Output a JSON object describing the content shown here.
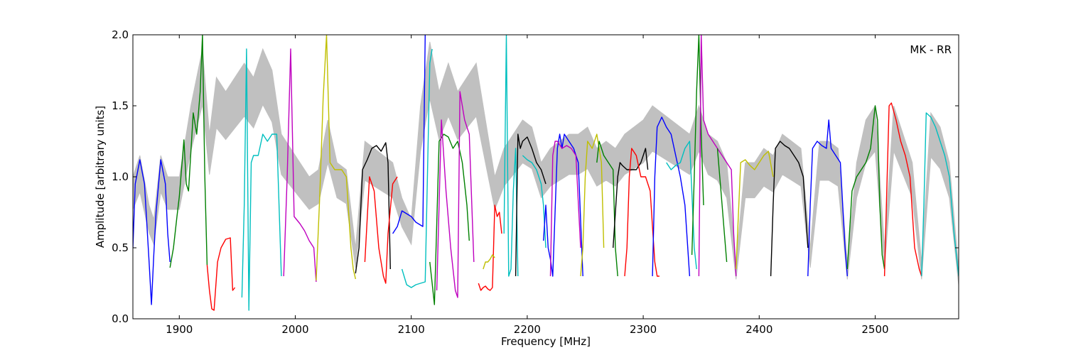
{
  "chart_data": {
    "type": "line",
    "xlabel": "Frequency [MHz]",
    "ylabel": "Amplitude [arbitrary units]",
    "xlim": [
      1860,
      2572
    ],
    "ylim": [
      0.0,
      2.0
    ],
    "x_ticks": [
      1900,
      2000,
      2100,
      2200,
      2300,
      2400,
      2500
    ],
    "x_tick_labels": [
      "1900",
      "2000",
      "2100",
      "2200",
      "2300",
      "2400",
      "2500"
    ],
    "y_ticks": [
      0.0,
      0.5,
      1.0,
      1.5,
      2.0
    ],
    "y_tick_labels": [
      "0.0",
      "0.5",
      "1.0",
      "1.5",
      "2.0"
    ],
    "grid": false,
    "annotation": "MK - RR",
    "reference_color": "#c0c0c0",
    "segments": [
      {
        "color": "#0000ff",
        "x": [
          1860,
          1862,
          1866,
          1870,
          1874,
          1876,
          1878,
          1880,
          1884,
          1888,
          1890,
          1892
        ],
        "y": [
          0.5,
          0.95,
          1.12,
          0.95,
          0.4,
          0.1,
          0.45,
          0.75,
          1.12,
          0.95,
          0.6,
          0.4
        ]
      },
      {
        "color": "#008000",
        "x": [
          1892,
          1895,
          1898,
          1900,
          1904,
          1906,
          1908,
          1912,
          1915,
          1918,
          1920,
          1922,
          1924
        ],
        "y": [
          0.36,
          0.5,
          0.72,
          0.86,
          1.26,
          0.95,
          0.9,
          1.45,
          1.3,
          1.6,
          2.0,
          1.0,
          0.38
        ]
      },
      {
        "color": "#ff0000",
        "x": [
          1924,
          1926,
          1928,
          1930,
          1933,
          1936,
          1940,
          1944,
          1946,
          1948
        ],
        "y": [
          0.38,
          0.2,
          0.07,
          0.06,
          0.4,
          0.5,
          0.56,
          0.57,
          0.2,
          0.22
        ]
      },
      {
        "color": "#00bfbf",
        "x": [
          1954,
          1956,
          1958,
          1960,
          1962,
          1964,
          1968,
          1972,
          1976,
          1980,
          1984,
          1988
        ],
        "y": [
          0.15,
          0.8,
          1.9,
          0.06,
          1.1,
          1.15,
          1.15,
          1.3,
          1.25,
          1.3,
          1.3,
          0.3
        ]
      },
      {
        "color": "#bf00bf",
        "x": [
          1990,
          1993,
          1996,
          1999,
          2004,
          2008,
          2012,
          2016,
          2018
        ],
        "y": [
          0.3,
          1.0,
          1.9,
          0.72,
          0.67,
          0.62,
          0.55,
          0.5,
          0.26
        ]
      },
      {
        "color": "#bfbf00",
        "x": [
          2018,
          2021,
          2024,
          2027,
          2030,
          2034,
          2040,
          2044,
          2048,
          2050,
          2052
        ],
        "y": [
          0.27,
          0.85,
          1.55,
          2.0,
          1.1,
          1.05,
          1.05,
          1.0,
          0.5,
          0.35,
          0.28
        ]
      },
      {
        "color": "#000000",
        "x": [
          2052,
          2055,
          2058,
          2062,
          2066,
          2070,
          2074,
          2078,
          2080,
          2082
        ],
        "y": [
          0.32,
          0.5,
          1.05,
          1.12,
          1.2,
          1.22,
          1.18,
          1.24,
          1.1,
          0.35
        ]
      },
      {
        "color": "#ff0000",
        "x": [
          2060,
          2064,
          2068,
          2072,
          2076,
          2078,
          2080,
          2084,
          2088
        ],
        "y": [
          0.4,
          1.0,
          0.9,
          0.5,
          0.3,
          0.25,
          0.6,
          0.95,
          1.0
        ]
      },
      {
        "color": "#0000ff",
        "x": [
          2084,
          2088,
          2092,
          2096,
          2100,
          2104,
          2108,
          2110,
          2112
        ],
        "y": [
          0.6,
          0.65,
          0.76,
          0.74,
          0.72,
          0.68,
          0.66,
          0.65,
          2.0
        ]
      },
      {
        "color": "#00bfbf",
        "x": [
          2092,
          2096,
          2100,
          2104,
          2108,
          2112,
          2116,
          2118
        ],
        "y": [
          0.35,
          0.24,
          0.22,
          0.24,
          0.25,
          0.26,
          1.8,
          1.9
        ]
      },
      {
        "color": "#008000",
        "x": [
          2116,
          2118,
          2120,
          2124,
          2128,
          2132,
          2136,
          2140,
          2144,
          2148,
          2150
        ],
        "y": [
          0.4,
          0.25,
          0.1,
          1.25,
          1.3,
          1.28,
          1.2,
          1.25,
          1.1,
          0.8,
          0.55
        ]
      },
      {
        "color": "#bf00bf",
        "x": [
          2122,
          2126,
          2130,
          2134,
          2138,
          2140,
          2142,
          2146,
          2150,
          2154
        ],
        "y": [
          0.2,
          1.4,
          0.9,
          0.5,
          0.2,
          0.15,
          1.6,
          1.4,
          1.3,
          0.4
        ]
      },
      {
        "color": "#ff0000",
        "x": [
          2158,
          2160,
          2162,
          2164,
          2166,
          2168,
          2170,
          2172,
          2174,
          2176,
          2178
        ],
        "y": [
          0.25,
          0.2,
          0.22,
          0.23,
          0.21,
          0.2,
          0.22,
          0.8,
          0.72,
          0.75,
          0.6
        ]
      },
      {
        "color": "#bfbf00",
        "x": [
          2162,
          2164,
          2166,
          2168,
          2170,
          2172
        ],
        "y": [
          0.35,
          0.4,
          0.4,
          0.42,
          0.45,
          0.43
        ]
      },
      {
        "color": "#00bfbf",
        "x": [
          2180,
          2182,
          2184,
          2186,
          2188,
          2190,
          2192
        ],
        "y": [
          0.6,
          2.0,
          0.3,
          0.35,
          0.9,
          1.2,
          0.3
        ]
      },
      {
        "color": "#000000",
        "x": [
          2190,
          2192,
          2194,
          2196,
          2200,
          2204,
          2208,
          2212,
          2216
        ],
        "y": [
          0.3,
          1.3,
          1.2,
          1.25,
          1.28,
          1.2,
          1.1,
          1.05,
          0.95
        ]
      },
      {
        "color": "#00bfbf",
        "x": [
          2196,
          2200,
          2204,
          2208,
          2212,
          2214,
          2216
        ],
        "y": [
          1.15,
          1.12,
          1.1,
          1.05,
          0.95,
          0.8,
          0.5
        ]
      },
      {
        "color": "#0000ff",
        "x": [
          2214,
          2216,
          2218,
          2220,
          2222,
          2226,
          2228,
          2230,
          2232,
          2236,
          2240,
          2244,
          2248
        ],
        "y": [
          0.55,
          0.8,
          0.5,
          0.42,
          0.3,
          1.2,
          1.3,
          1.2,
          1.3,
          1.25,
          1.2,
          1.1,
          0.3
        ]
      },
      {
        "color": "#bf00bf",
        "x": [
          2220,
          2222,
          2224,
          2226,
          2230,
          2234,
          2238,
          2242,
          2246
        ],
        "y": [
          0.3,
          1.15,
          1.25,
          1.25,
          1.2,
          1.22,
          1.2,
          1.15,
          0.5
        ]
      },
      {
        "color": "#bfbf00",
        "x": [
          2246,
          2248,
          2250,
          2252,
          2256,
          2260,
          2264,
          2266
        ],
        "y": [
          0.3,
          0.5,
          1.0,
          1.25,
          1.2,
          1.3,
          1.1,
          0.5
        ]
      },
      {
        "color": "#008000",
        "x": [
          2260,
          2262,
          2266,
          2270,
          2274,
          2276,
          2278
        ],
        "y": [
          1.1,
          1.25,
          1.15,
          1.1,
          1.05,
          0.5,
          0.3
        ]
      },
      {
        "color": "#000000",
        "x": [
          2274,
          2278,
          2280,
          2282,
          2286,
          2290,
          2294,
          2298,
          2302,
          2304
        ],
        "y": [
          0.5,
          1.0,
          1.1,
          1.08,
          1.05,
          1.05,
          1.05,
          1.1,
          1.2,
          1.05
        ]
      },
      {
        "color": "#ff0000",
        "x": [
          2284,
          2286,
          2288,
          2290,
          2294,
          2298,
          2302,
          2306,
          2308,
          2310,
          2312,
          2314
        ],
        "y": [
          0.3,
          0.5,
          1.0,
          1.2,
          1.15,
          1.0,
          1.0,
          0.9,
          0.65,
          0.4,
          0.3,
          0.3
        ]
      },
      {
        "color": "#0000ff",
        "x": [
          2308,
          2310,
          2312,
          2316,
          2320,
          2324,
          2328,
          2332,
          2336,
          2340
        ],
        "y": [
          0.3,
          1.0,
          1.35,
          1.42,
          1.35,
          1.3,
          1.15,
          1.0,
          0.8,
          0.3
        ]
      },
      {
        "color": "#00bfbf",
        "x": [
          2320,
          2324,
          2328,
          2332,
          2336,
          2340,
          2344,
          2346
        ],
        "y": [
          1.1,
          1.05,
          1.08,
          1.1,
          1.2,
          1.25,
          0.5,
          0.35
        ]
      },
      {
        "color": "#008000",
        "x": [
          2342,
          2344,
          2346,
          2348,
          2350,
          2352
        ],
        "y": [
          0.45,
          1.0,
          1.6,
          2.0,
          1.3,
          0.8
        ]
      },
      {
        "color": "#bf00bf",
        "x": [
          2348,
          2350,
          2352,
          2356,
          2360,
          2364,
          2368,
          2372,
          2376,
          2378,
          2380
        ],
        "y": [
          0.3,
          2.0,
          1.4,
          1.3,
          1.25,
          1.2,
          1.15,
          1.1,
          1.05,
          0.6,
          0.3
        ]
      },
      {
        "color": "#008000",
        "x": [
          2364,
          2366,
          2368,
          2370,
          2372
        ],
        "y": [
          1.2,
          1.0,
          0.8,
          0.6,
          0.4
        ]
      },
      {
        "color": "#bfbf00",
        "x": [
          2380,
          2384,
          2388,
          2392,
          2396,
          2400,
          2404,
          2408,
          2412
        ],
        "y": [
          0.35,
          1.1,
          1.12,
          1.08,
          1.05,
          1.1,
          1.15,
          1.18,
          1.0
        ]
      },
      {
        "color": "#000000",
        "x": [
          2410,
          2412,
          2414,
          2418,
          2422,
          2426,
          2430,
          2434,
          2438,
          2442
        ],
        "y": [
          0.3,
          0.8,
          1.2,
          1.25,
          1.22,
          1.2,
          1.15,
          1.1,
          1.0,
          0.5
        ]
      },
      {
        "color": "#0000ff",
        "x": [
          2442,
          2444,
          2446,
          2450,
          2454,
          2458,
          2460,
          2462,
          2466,
          2470,
          2474,
          2476
        ],
        "y": [
          0.3,
          0.8,
          1.2,
          1.25,
          1.22,
          1.2,
          1.4,
          1.2,
          1.15,
          1.1,
          0.5,
          0.3
        ]
      },
      {
        "color": "#008000",
        "x": [
          2476,
          2480,
          2484,
          2488,
          2492,
          2496,
          2500,
          2502,
          2504,
          2506,
          2508
        ],
        "y": [
          0.35,
          0.9,
          1.0,
          1.05,
          1.1,
          1.2,
          1.5,
          1.4,
          0.8,
          0.45,
          0.35
        ]
      },
      {
        "color": "#ff0000",
        "x": [
          2508,
          2510,
          2512,
          2514,
          2518,
          2522,
          2526,
          2530,
          2534,
          2538,
          2540
        ],
        "y": [
          0.3,
          0.9,
          1.5,
          1.52,
          1.4,
          1.25,
          1.15,
          1.0,
          0.5,
          0.35,
          0.3
        ]
      },
      {
        "color": "#00bfbf",
        "x": [
          2540,
          2542,
          2544,
          2548,
          2552,
          2556,
          2560,
          2564,
          2568,
          2572
        ],
        "y": [
          0.3,
          0.8,
          1.45,
          1.42,
          1.35,
          1.25,
          1.15,
          1.0,
          0.6,
          0.3
        ]
      }
    ],
    "reference": {
      "x": [
        1860,
        1866,
        1874,
        1878,
        1884,
        1890,
        1900,
        1910,
        1920,
        1926,
        1932,
        1940,
        1948,
        1956,
        1964,
        1972,
        1980,
        1988,
        1996,
        2004,
        2012,
        2020,
        2028,
        2036,
        2044,
        2052,
        2060,
        2068,
        2076,
        2084,
        2092,
        2100,
        2108,
        2116,
        2124,
        2132,
        2140,
        2148,
        2156,
        2164,
        2172,
        2180,
        2188,
        2196,
        2204,
        2212,
        2220,
        2228,
        2236,
        2244,
        2252,
        2260,
        2268,
        2276,
        2284,
        2292,
        2300,
        2308,
        2316,
        2324,
        2332,
        2340,
        2348,
        2356,
        2364,
        2372,
        2380,
        2388,
        2396,
        2404,
        2412,
        2420,
        2428,
        2436,
        2444,
        2452,
        2460,
        2468,
        2476,
        2484,
        2492,
        2500,
        2508,
        2516,
        2524,
        2532,
        2540,
        2548,
        2556,
        2564,
        2572
      ],
      "y": [
        1.0,
        1.15,
        0.8,
        0.7,
        1.15,
        1.0,
        1.0,
        1.5,
        1.9,
        1.3,
        1.7,
        1.6,
        1.7,
        1.8,
        1.7,
        1.9,
        1.75,
        1.3,
        1.2,
        1.1,
        1.0,
        1.05,
        1.4,
        1.1,
        1.05,
        0.5,
        1.25,
        1.2,
        1.15,
        1.1,
        0.85,
        0.7,
        1.5,
        1.95,
        1.6,
        1.8,
        1.6,
        1.7,
        1.8,
        1.4,
        1.0,
        1.2,
        1.3,
        1.4,
        1.35,
        1.1,
        1.2,
        1.25,
        1.3,
        1.3,
        1.35,
        1.2,
        1.25,
        1.2,
        1.3,
        1.35,
        1.4,
        1.5,
        1.45,
        1.4,
        1.35,
        1.3,
        1.5,
        1.3,
        1.25,
        1.1,
        0.4,
        1.1,
        1.1,
        1.2,
        1.15,
        1.3,
        1.25,
        1.2,
        0.5,
        1.25,
        1.25,
        1.2,
        0.4,
        1.1,
        1.4,
        1.5,
        0.5,
        1.5,
        1.3,
        1.1,
        0.4,
        1.45,
        1.35,
        1.1,
        0.35
      ]
    }
  }
}
